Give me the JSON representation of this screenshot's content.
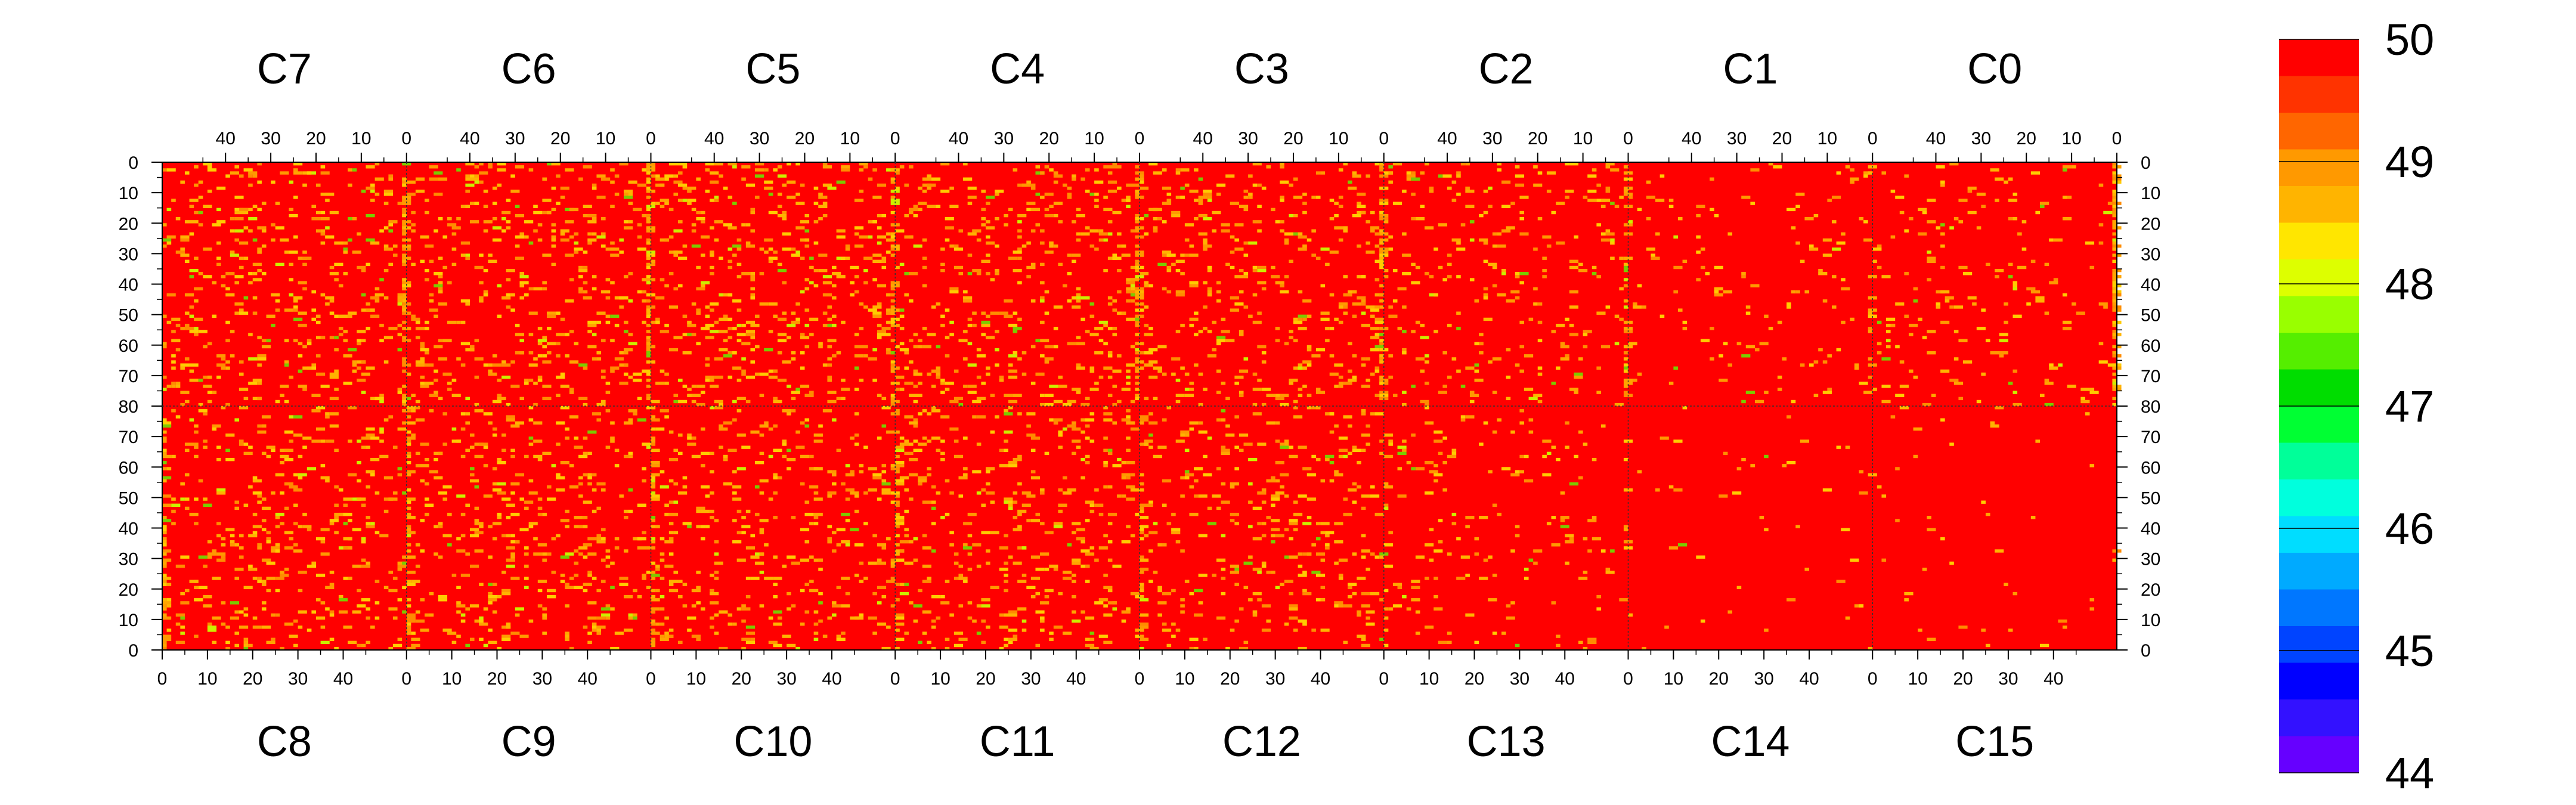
{
  "chart_data": {
    "type": "heatmap",
    "title": "",
    "xlabel": "",
    "ylabel": "",
    "top_panels": [
      "C7",
      "C6",
      "C5",
      "C4",
      "C3",
      "C2",
      "C1",
      "C0"
    ],
    "bottom_panels": [
      "C8",
      "C9",
      "C10",
      "C11",
      "C12",
      "C13",
      "C14",
      "C15"
    ],
    "top_x_ticks": [
      40,
      30,
      20,
      10,
      0
    ],
    "bottom_x_ticks": [
      0,
      10,
      20,
      30,
      40
    ],
    "x_range": [
      0,
      54
    ],
    "top_y_range": [
      0,
      80
    ],
    "bottom_y_range": [
      0,
      80
    ],
    "y_tick_labels": [
      "0",
      "10",
      "20",
      "30",
      "40",
      "50",
      "60",
      "70",
      "80",
      "70",
      "60",
      "50",
      "40",
      "30",
      "20",
      "10",
      "0"
    ],
    "z_range": [
      44,
      50
    ],
    "colorbar_labels": [
      "50",
      "49",
      "48",
      "47",
      "46",
      "45",
      "44"
    ],
    "colorbar_colors": [
      "#ff0000",
      "#ff3300",
      "#ff6600",
      "#ff9900",
      "#ffb400",
      "#ffe600",
      "#ddff00",
      "#99ff00",
      "#55ee00",
      "#00dd00",
      "#00ff33",
      "#00ff99",
      "#00ffdd",
      "#00ddff",
      "#00aaff",
      "#0077ff",
      "#0044ff",
      "#0000ff",
      "#3311ff",
      "#6600ff"
    ],
    "dominant_value": 50,
    "activity": {
      "top_panels": [
        0.1,
        0.1,
        0.1,
        0.1,
        0.09,
        0.06,
        0.03,
        0.04
      ],
      "bottom_panels": [
        0.09,
        0.09,
        0.09,
        0.09,
        0.08,
        0.04,
        0.01,
        0.01
      ]
    },
    "hot_columns": [
      0,
      54
    ],
    "notes": "Each panel is a 54 x 80 grid of values; the large majority of cells are at 50 (red), with scattered orange/yellow cells near 49 and a few green cells near 48, concentrated along panel-edge columns."
  }
}
